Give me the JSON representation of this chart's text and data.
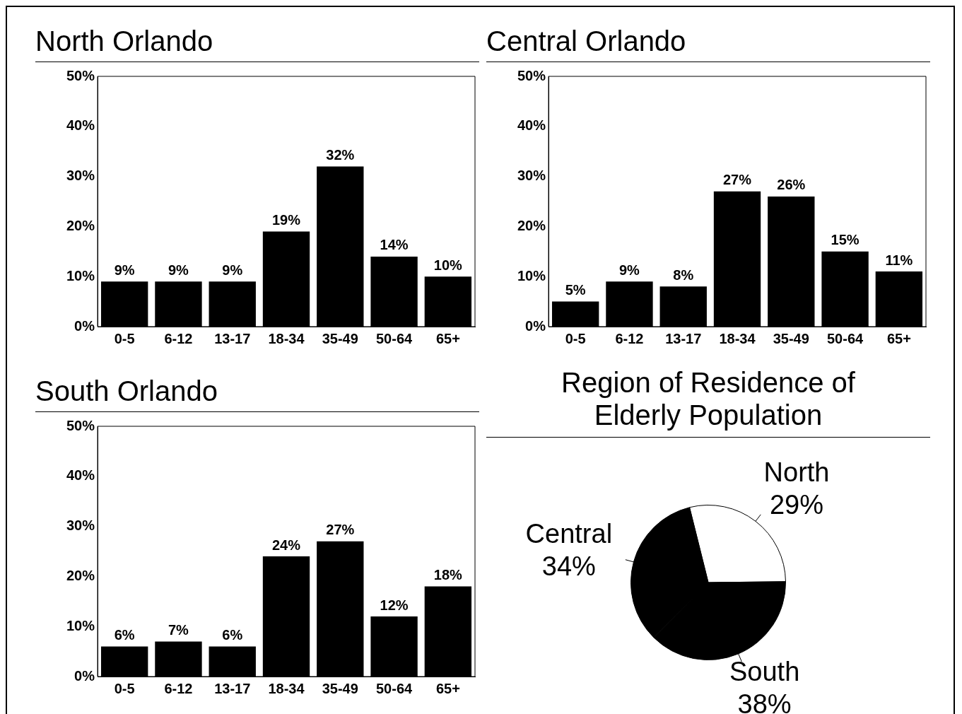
{
  "chart_data": [
    {
      "type": "bar",
      "title": "North Orlando",
      "categories": [
        "0-5",
        "6-12",
        "13-17",
        "18-34",
        "35-49",
        "50-64",
        "65+"
      ],
      "values": [
        9,
        9,
        9,
        19,
        32,
        14,
        10
      ],
      "color": "#000000",
      "value_labels": [
        "9%",
        "9%",
        "9%",
        "19%",
        "32%",
        "14%",
        "10%"
      ],
      "ylim": [
        0,
        50
      ],
      "yticks": [
        {
          "value": 0,
          "label": "0%"
        },
        {
          "value": 10,
          "label": "10%"
        },
        {
          "value": 20,
          "label": "20%"
        },
        {
          "value": 30,
          "label": "30%"
        },
        {
          "value": 40,
          "label": "40%"
        },
        {
          "value": 50,
          "label": "50%"
        }
      ]
    },
    {
      "type": "bar",
      "title": "Central Orlando",
      "categories": [
        "0-5",
        "6-12",
        "13-17",
        "18-34",
        "35-49",
        "50-64",
        "65+"
      ],
      "values": [
        5,
        9,
        8,
        27,
        26,
        15,
        11
      ],
      "color": "#000000",
      "value_labels": [
        "5%",
        "9%",
        "8%",
        "27%",
        "26%",
        "15%",
        "11%"
      ],
      "ylim": [
        0,
        50
      ],
      "yticks": [
        {
          "value": 0,
          "label": "0%"
        },
        {
          "value": 10,
          "label": "10%"
        },
        {
          "value": 20,
          "label": "20%"
        },
        {
          "value": 30,
          "label": "30%"
        },
        {
          "value": 40,
          "label": "40%"
        },
        {
          "value": 50,
          "label": "50%"
        }
      ]
    },
    {
      "type": "bar",
      "title": "South Orlando",
      "categories": [
        "0-5",
        "6-12",
        "13-17",
        "18-34",
        "35-49",
        "50-64",
        "65+"
      ],
      "values": [
        6,
        7,
        6,
        24,
        27,
        12,
        18
      ],
      "color": "#000000",
      "value_labels": [
        "6%",
        "7%",
        "6%",
        "24%",
        "27%",
        "12%",
        "18%"
      ],
      "ylim": [
        0,
        50
      ],
      "yticks": [
        {
          "value": 0,
          "label": "0%"
        },
        {
          "value": 10,
          "label": "10%"
        },
        {
          "value": 20,
          "label": "20%"
        },
        {
          "value": 30,
          "label": "30%"
        },
        {
          "value": 40,
          "label": "40%"
        },
        {
          "value": 50,
          "label": "50%"
        }
      ]
    },
    {
      "type": "pie",
      "title": "Region of Residence of Elderly Population",
      "categories": [
        "North",
        "South",
        "Central"
      ],
      "values": [
        29,
        38,
        34
      ],
      "colors": [
        "#ffffff",
        "#000000",
        "#000000"
      ],
      "value_labels": [
        "29%",
        "38%",
        "34%"
      ]
    }
  ]
}
